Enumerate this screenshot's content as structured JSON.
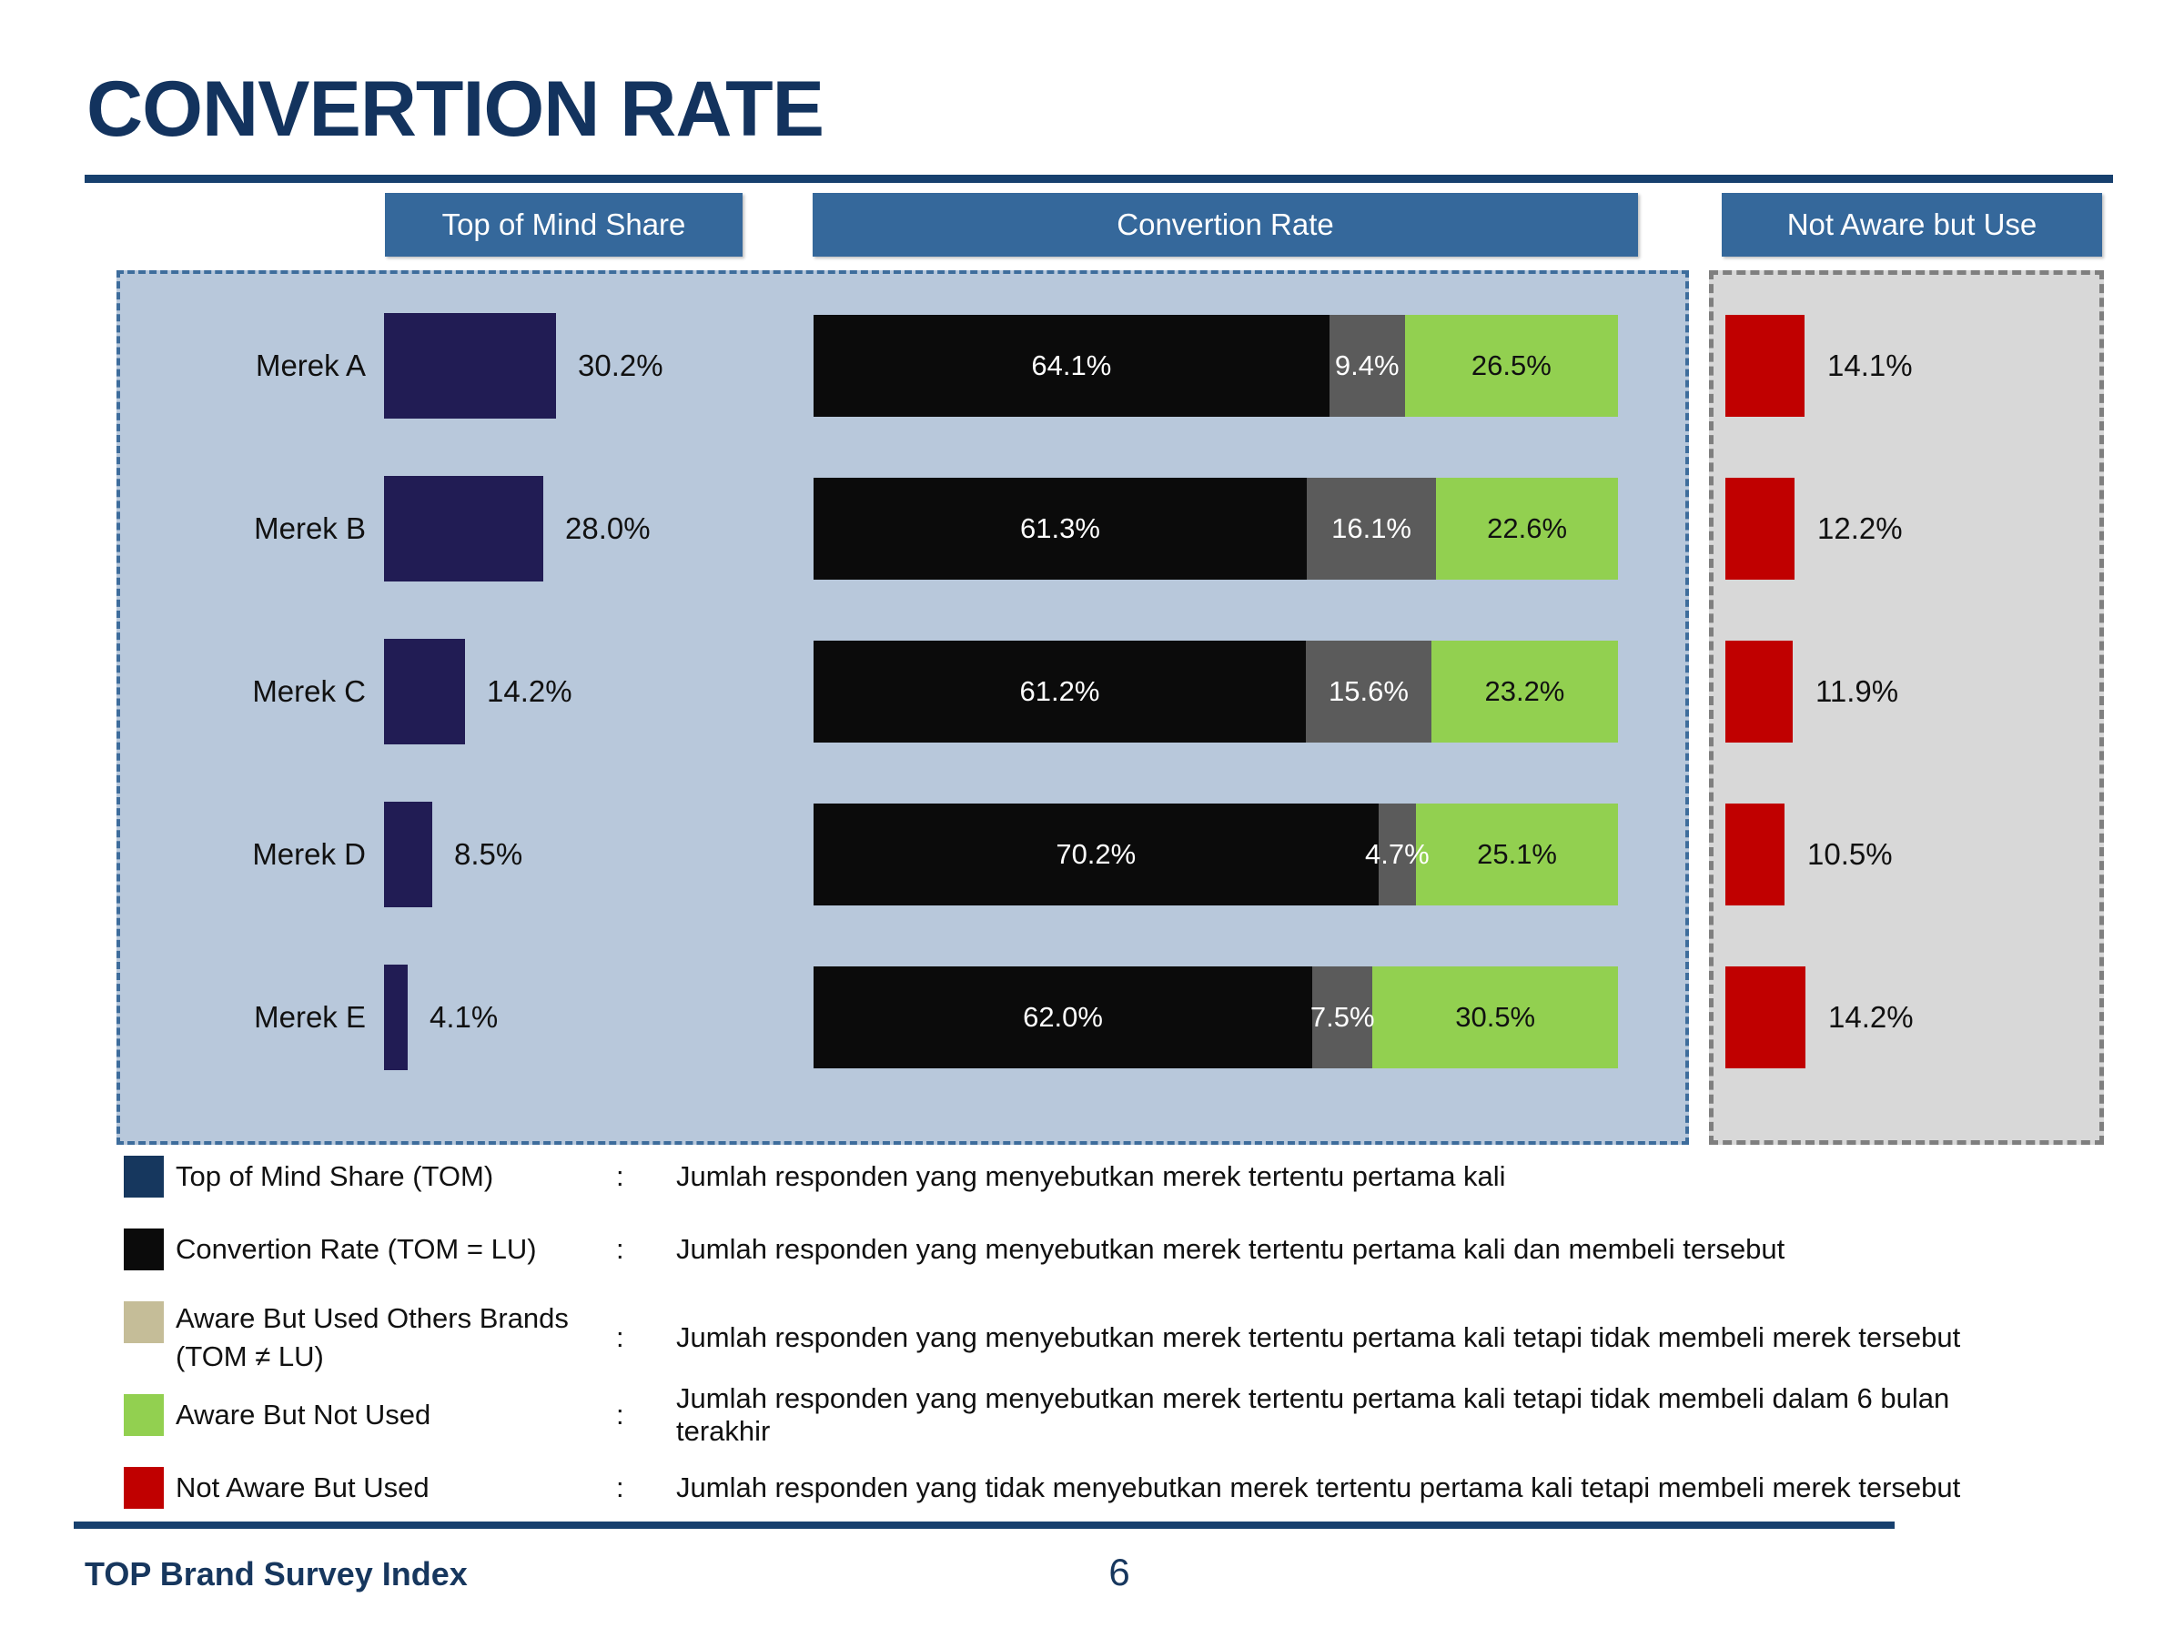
{
  "title": "CONVERTION RATE",
  "column_headers": {
    "tom": "Top of Mind Share",
    "conversion": "Convertion Rate",
    "not_aware": "Not Aware but Use"
  },
  "chart_data": {
    "type": "bar",
    "orientation": "horizontal",
    "categories": [
      "Merek A",
      "Merek B",
      "Merek C",
      "Merek D",
      "Merek E"
    ],
    "series": [
      {
        "name": "Top of Mind Share (TOM)",
        "values": [
          30.2,
          28.0,
          14.2,
          8.5,
          4.1
        ],
        "labels": [
          "30.2%",
          "28.0%",
          "14.2%",
          "8.5%",
          "4.1%"
        ],
        "color": "#211C54"
      },
      {
        "name": "Convertion Rate (TOM = LU)",
        "values": [
          64.1,
          61.3,
          61.2,
          70.2,
          62.0
        ],
        "labels": [
          "64.1%",
          "61.3%",
          "61.2%",
          "70.2%",
          "62.0%"
        ],
        "color": "#0B0B0B",
        "label_color": "#ffffff"
      },
      {
        "name": "Aware But Used Others Brands (TOM ≠ LU)",
        "values": [
          9.4,
          16.1,
          15.6,
          4.7,
          7.5
        ],
        "labels": [
          "9.4%",
          "16.1%",
          "15.6%",
          "4.7%",
          "7.5%"
        ],
        "color": "#5B5B5B",
        "label_color": "#ffffff"
      },
      {
        "name": "Aware But Not Used",
        "values": [
          26.5,
          22.6,
          23.2,
          25.1,
          30.5
        ],
        "labels": [
          "26.5%",
          "22.6%",
          "23.2%",
          "25.1%",
          "30.5%"
        ],
        "color": "#92D050",
        "label_color": "#111111"
      },
      {
        "name": "Not Aware But Used",
        "values": [
          14.1,
          12.2,
          11.9,
          10.5,
          14.2
        ],
        "labels": [
          "14.1%",
          "12.2%",
          "11.9%",
          "10.5%",
          "14.2%"
        ],
        "color": "#C00000"
      }
    ],
    "stacked_series": [
      "Convertion Rate (TOM = LU)",
      "Aware But Used Others Brands (TOM ≠ LU)",
      "Aware But Not Used"
    ],
    "stacked_total": 100,
    "grid": false,
    "legend_position": "bottom"
  },
  "legend": [
    {
      "swatch_color": "#16375E",
      "label": "Top of Mind Share (TOM)",
      "colon": ":",
      "desc": "Jumlah responden yang menyebutkan merek tertentu pertama kali"
    },
    {
      "swatch_color": "#0B0B0B",
      "label": "Convertion Rate (TOM = LU)",
      "colon": ":",
      "desc": "Jumlah responden yang menyebutkan merek tertentu pertama kali dan membeli tersebut"
    },
    {
      "swatch_color": "#C5BD98",
      "label": "Aware But Used Others Brands (TOM ≠ LU)",
      "colon": ":",
      "desc": "Jumlah responden yang menyebutkan merek tertentu pertama kali tetapi tidak membeli merek tersebut"
    },
    {
      "swatch_color": "#92D050",
      "label": "Aware But Not Used",
      "colon": ":",
      "desc": "Jumlah responden yang menyebutkan merek tertentu pertama kali tetapi tidak membeli dalam 6 bulan terakhir"
    },
    {
      "swatch_color": "#C00000",
      "label": "Not Aware But Used",
      "colon": ":",
      "desc": "Jumlah responden yang tidak menyebutkan merek tertentu pertama kali tetapi membeli merek tersebut"
    }
  ],
  "footer": {
    "left_text": "TOP Brand Survey Index",
    "page_number": "6"
  },
  "colors": {
    "title_navy": "#13335E",
    "rule_navy": "#17406E",
    "header_blue": "#35689B",
    "main_panel_bg": "#B8C8DB",
    "main_panel_border": "#3E6D9C",
    "gray_panel_bg": "#D8D8D8",
    "gray_panel_border": "#7F7F7F",
    "tom_bar": "#211C54",
    "black_segment": "#0B0B0B",
    "gray_segment": "#5B5B5B",
    "green_segment": "#92D050",
    "red_bar": "#C00000"
  }
}
